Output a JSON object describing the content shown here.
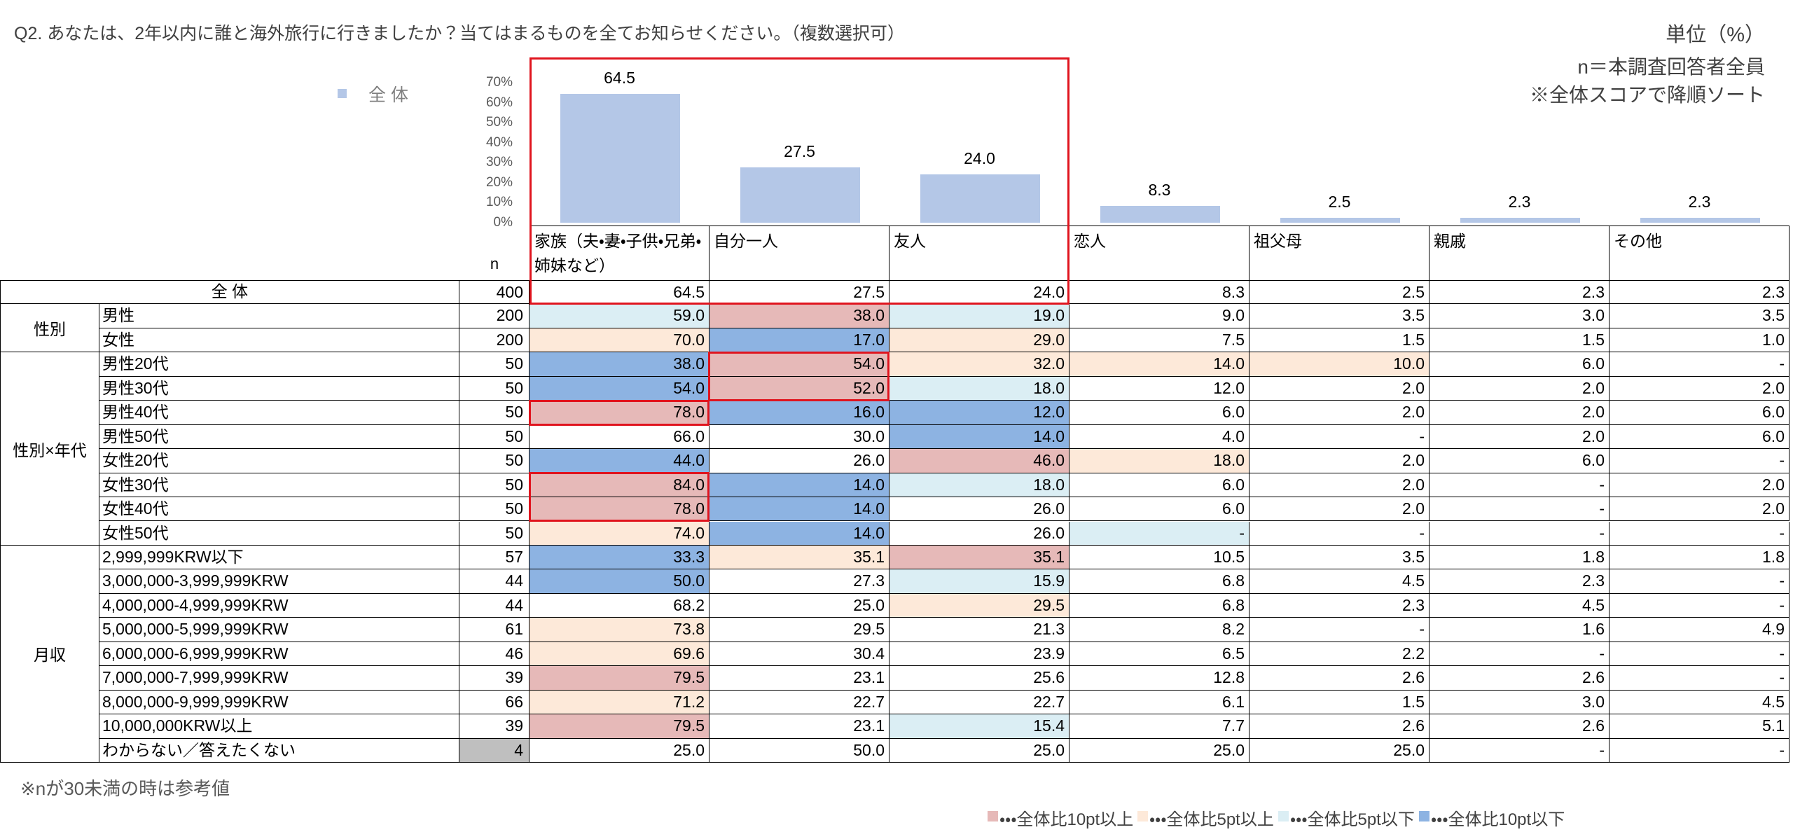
{
  "header": {
    "question": "Q2. あなたは、2年以内に誰と海外旅行に行きましたか？当てはまるものを全てお知らせください。（複数選択可）",
    "unit": "単位（%）",
    "notes": [
      "n＝本調査回答者全員",
      "※全体スコアで降順ソート"
    ]
  },
  "chart_data": {
    "type": "bar",
    "categories": [
      "家族（夫・妻・子供・兄弟・姉妹など）",
      "自分一人",
      "友人",
      "恋人",
      "祖父母",
      "親戚",
      "その他"
    ],
    "series": [
      {
        "name": "全 体",
        "color": "#b4c7e7",
        "values": [
          64.5,
          27.5,
          24.0,
          8.3,
          2.5,
          2.3,
          2.3
        ],
        "value_labels": [
          "64.5",
          "27.5",
          "24.0",
          "8.3",
          "2.5",
          "2.3",
          "2.3"
        ]
      }
    ],
    "ylim": [
      0,
      70
    ],
    "yticks": [
      {
        "value": 0,
        "label": "0%"
      },
      {
        "value": 10,
        "label": "10%"
      },
      {
        "value": 20,
        "label": "20%"
      },
      {
        "value": 30,
        "label": "30%"
      },
      {
        "value": 40,
        "label": "40%"
      },
      {
        "value": 50,
        "label": "50%"
      },
      {
        "value": 60,
        "label": "60%"
      },
      {
        "value": 70,
        "label": "70%"
      }
    ]
  },
  "table": {
    "n_label": "n",
    "total": {
      "label": "全 体",
      "n": 400,
      "values": [
        "64.5",
        "27.5",
        "24.0",
        "8.3",
        "2.5",
        "2.3",
        "2.3"
      ],
      "fills": [
        null,
        null,
        null,
        null,
        null,
        null,
        null
      ]
    },
    "groups": [
      {
        "label": "性別",
        "rows": [
          {
            "label": "男性",
            "n": 200,
            "values": [
              "59.0",
              "38.0",
              "19.0",
              "9.0",
              "3.5",
              "3.0",
              "3.5"
            ],
            "fills": [
              "#dbeef4",
              "#e6b9b8",
              "#dbeef4",
              null,
              null,
              null,
              null
            ]
          },
          {
            "label": "女性",
            "n": 200,
            "values": [
              "70.0",
              "17.0",
              "29.0",
              "7.5",
              "1.5",
              "1.5",
              "1.0"
            ],
            "fills": [
              "#fde9d9",
              "#8db3e2",
              "#fde9d9",
              null,
              null,
              null,
              null
            ]
          }
        ]
      },
      {
        "label": "性別×年代",
        "rows": [
          {
            "label": "男性20代",
            "n": 50,
            "values": [
              "38.0",
              "54.0",
              "32.0",
              "14.0",
              "10.0",
              "6.0",
              "-"
            ],
            "fills": [
              "#8db3e2",
              "#e6b9b8",
              "#fde9d9",
              "#fde9d9",
              "#fde9d9",
              null,
              null
            ]
          },
          {
            "label": "男性30代",
            "n": 50,
            "values": [
              "54.0",
              "52.0",
              "18.0",
              "12.0",
              "2.0",
              "2.0",
              "2.0"
            ],
            "fills": [
              "#8db3e2",
              "#e6b9b8",
              "#dbeef4",
              null,
              null,
              null,
              null
            ]
          },
          {
            "label": "男性40代",
            "n": 50,
            "values": [
              "78.0",
              "16.0",
              "12.0",
              "6.0",
              "2.0",
              "2.0",
              "6.0"
            ],
            "fills": [
              "#e6b9b8",
              "#8db3e2",
              "#8db3e2",
              null,
              null,
              null,
              null
            ]
          },
          {
            "label": "男性50代",
            "n": 50,
            "values": [
              "66.0",
              "30.0",
              "14.0",
              "4.0",
              "-",
              "2.0",
              "6.0"
            ],
            "fills": [
              null,
              null,
              "#8db3e2",
              null,
              null,
              null,
              null
            ]
          },
          {
            "label": "女性20代",
            "n": 50,
            "values": [
              "44.0",
              "26.0",
              "46.0",
              "18.0",
              "2.0",
              "6.0",
              "-"
            ],
            "fills": [
              "#8db3e2",
              null,
              "#e6b9b8",
              "#fde9d9",
              null,
              null,
              null
            ]
          },
          {
            "label": "女性30代",
            "n": 50,
            "values": [
              "84.0",
              "14.0",
              "18.0",
              "6.0",
              "2.0",
              "-",
              "2.0"
            ],
            "fills": [
              "#e6b9b8",
              "#8db3e2",
              "#dbeef4",
              null,
              null,
              null,
              null
            ]
          },
          {
            "label": "女性40代",
            "n": 50,
            "values": [
              "78.0",
              "14.0",
              "26.0",
              "6.0",
              "2.0",
              "-",
              "2.0"
            ],
            "fills": [
              "#e6b9b8",
              "#8db3e2",
              null,
              null,
              null,
              null,
              null
            ]
          },
          {
            "label": "女性50代",
            "n": 50,
            "values": [
              "74.0",
              "14.0",
              "26.0",
              "-",
              "-",
              "-",
              "-"
            ],
            "fills": [
              "#fde9d9",
              "#8db3e2",
              null,
              "#dbeef4",
              null,
              null,
              null
            ]
          }
        ]
      },
      {
        "label": "月収",
        "rows": [
          {
            "label": "2,999,999KRW以下",
            "n": 57,
            "values": [
              "33.3",
              "35.1",
              "35.1",
              "10.5",
              "3.5",
              "1.8",
              "1.8"
            ],
            "fills": [
              "#8db3e2",
              "#fde9d9",
              "#e6b9b8",
              null,
              null,
              null,
              null
            ]
          },
          {
            "label": "3,000,000-3,999,999KRW",
            "n": 44,
            "values": [
              "50.0",
              "27.3",
              "15.9",
              "6.8",
              "4.5",
              "2.3",
              "-"
            ],
            "fills": [
              "#8db3e2",
              null,
              "#dbeef4",
              null,
              null,
              null,
              null
            ]
          },
          {
            "label": "4,000,000-4,999,999KRW",
            "n": 44,
            "values": [
              "68.2",
              "25.0",
              "29.5",
              "6.8",
              "2.3",
              "4.5",
              "-"
            ],
            "fills": [
              null,
              null,
              "#fde9d9",
              null,
              null,
              null,
              null
            ]
          },
          {
            "label": "5,000,000-5,999,999KRW",
            "n": 61,
            "values": [
              "73.8",
              "29.5",
              "21.3",
              "8.2",
              "-",
              "1.6",
              "4.9"
            ],
            "fills": [
              "#fde9d9",
              null,
              null,
              null,
              null,
              null,
              null
            ]
          },
          {
            "label": "6,000,000-6,999,999KRW",
            "n": 46,
            "values": [
              "69.6",
              "30.4",
              "23.9",
              "6.5",
              "2.2",
              "-",
              "-"
            ],
            "fills": [
              "#fde9d9",
              null,
              null,
              null,
              null,
              null,
              null
            ]
          },
          {
            "label": "7,000,000-7,999,999KRW",
            "n": 39,
            "values": [
              "79.5",
              "23.1",
              "25.6",
              "12.8",
              "2.6",
              "2.6",
              "-"
            ],
            "fills": [
              "#e6b9b8",
              null,
              null,
              null,
              null,
              null,
              null
            ]
          },
          {
            "label": "8,000,000-9,999,999KRW",
            "n": 66,
            "values": [
              "71.2",
              "22.7",
              "22.7",
              "6.1",
              "1.5",
              "3.0",
              "4.5"
            ],
            "fills": [
              "#fde9d9",
              null,
              null,
              null,
              null,
              null,
              null
            ]
          },
          {
            "label": "10,000,000KRW以上",
            "n": 39,
            "values": [
              "79.5",
              "23.1",
              "15.4",
              "7.7",
              "2.6",
              "2.6",
              "5.1"
            ],
            "fills": [
              "#e6b9b8",
              null,
              "#dbeef4",
              null,
              null,
              null,
              null
            ]
          },
          {
            "label": "わからない／答えたくない",
            "n": 4,
            "n_color": "#bfbfbf",
            "values": [
              "25.0",
              "50.0",
              "25.0",
              "25.0",
              "25.0",
              "-",
              "-"
            ],
            "fills": [
              null,
              null,
              null,
              null,
              null,
              null,
              null
            ]
          }
        ]
      }
    ]
  },
  "footnote": "※nが30未満の時は参考値",
  "legend": [
    {
      "label": "・・・全体比10pt以上",
      "color": "#e6b9b8"
    },
    {
      "label": "・・・全体比5pt以上",
      "color": "#fde9d9"
    },
    {
      "label": "・・・全体比5pt以下",
      "color": "#dbeef4"
    },
    {
      "label": "・・・全体比10pt以下",
      "color": "#8db3e2"
    }
  ]
}
